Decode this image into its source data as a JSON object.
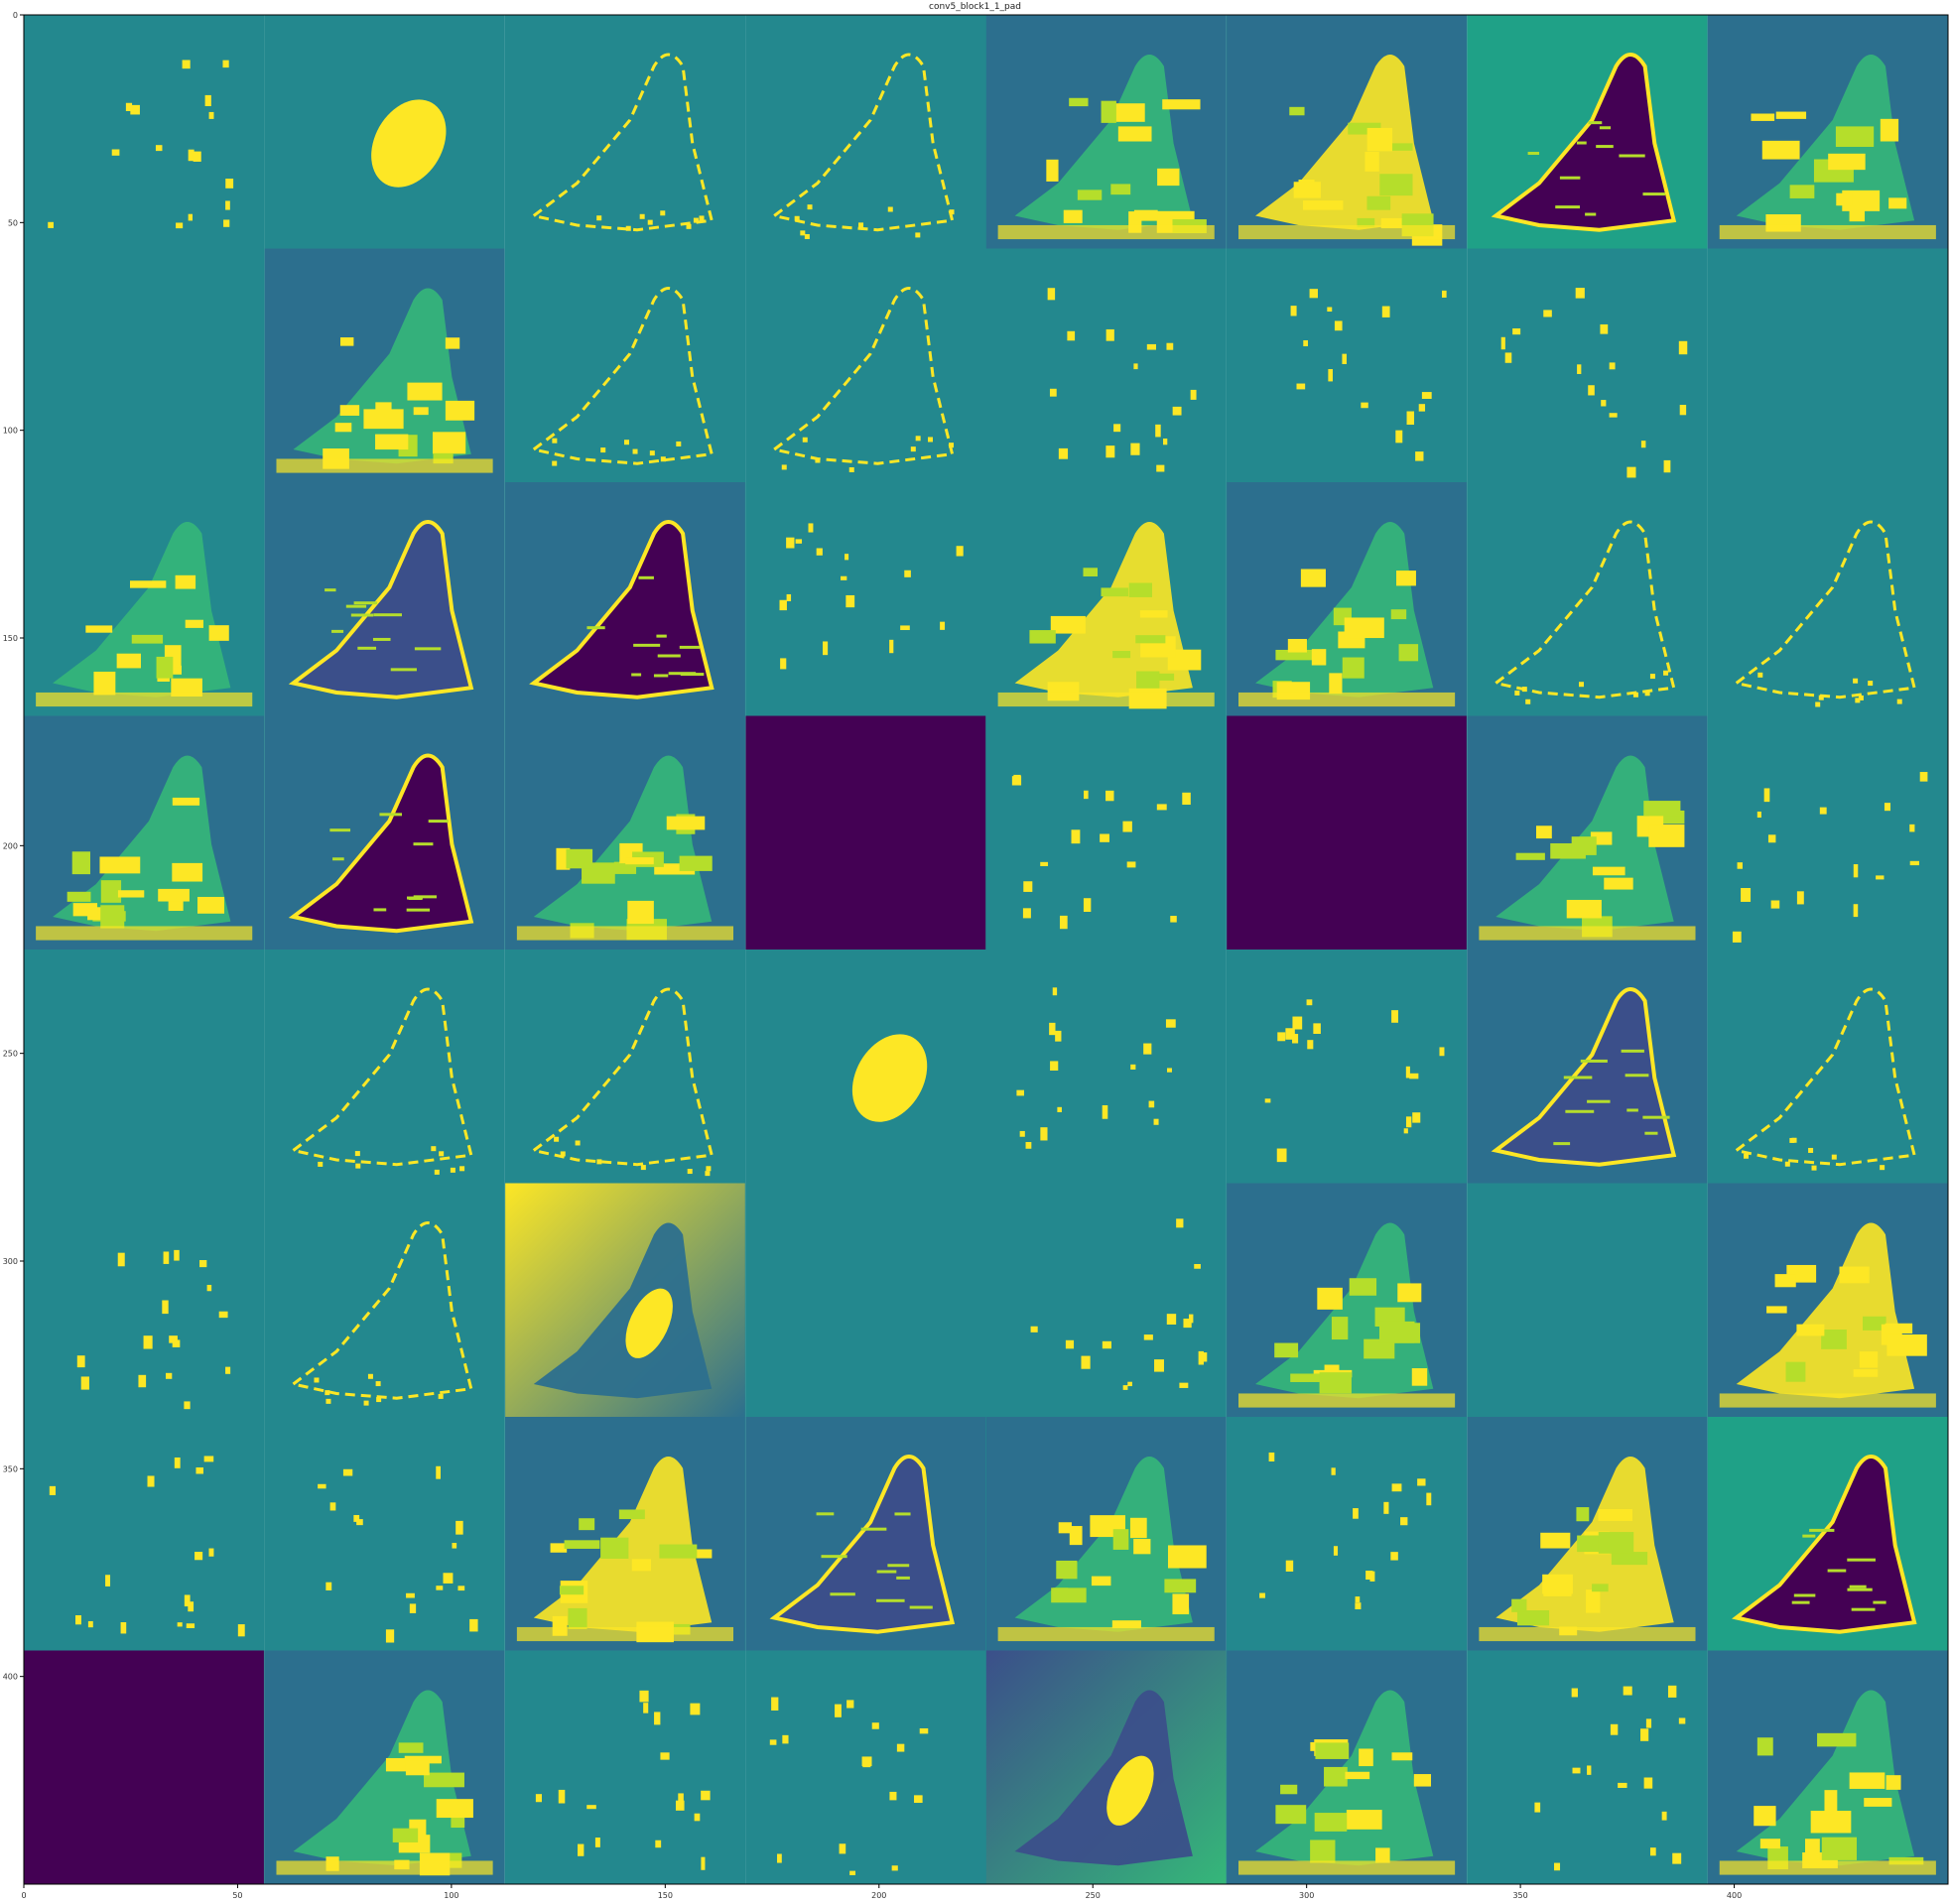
{
  "figure": {
    "title": "conv5_block1_1_pad",
    "colors": {
      "teal": "#23888e",
      "steel": "#2c6f8e",
      "dark": "#440154",
      "deep": "#3b4f8a",
      "yellow": "#fde725",
      "lime": "#b5de2b",
      "green": "#35b779",
      "midgreen": "#1fa187"
    },
    "grid": {
      "rows": 8,
      "cols": 8
    },
    "axes": {
      "x_ticks": [
        "0",
        "50",
        "100",
        "150",
        "200",
        "250",
        "300",
        "350",
        "400"
      ],
      "y_ticks": [
        "0",
        "50",
        "100",
        "150",
        "200",
        "250",
        "300",
        "350",
        "400"
      ],
      "range": [
        0,
        450
      ]
    },
    "tiles": [
      "sparse",
      "blob",
      "outline",
      "outline",
      "bird-bright",
      "bird-yellow",
      "bird-inverted",
      "bird-bright",
      "blank",
      "bird-bright",
      "outline",
      "outline",
      "sparse",
      "sparse",
      "sparse",
      "blank",
      "bird-bright",
      "bird-edges",
      "bird-inverted",
      "sparse",
      "bird-yellow",
      "bird-bright",
      "outline",
      "outline",
      "bird-bright",
      "bird-inverted",
      "bird-bright",
      "dead",
      "sparse",
      "dead",
      "bird-bright",
      "sparse",
      "blank",
      "outline",
      "outline",
      "blob",
      "sparse",
      "sparse",
      "bird-edges",
      "outline",
      "sparse",
      "outline",
      "gradient",
      "blank",
      "sparse",
      "bird-bright",
      "blank",
      "bird-yellow",
      "sparse",
      "sparse",
      "bird-yellow",
      "bird-edges",
      "bird-bright",
      "sparse",
      "bird-yellow",
      "bird-inverted",
      "dead",
      "bird-bright",
      "sparse",
      "sparse",
      "gradient-dark",
      "bird-bright",
      "sparse",
      "bird-bright"
    ],
    "tile_backgrounds": [
      "teal",
      "teal",
      "teal",
      "teal",
      "steel",
      "steel",
      "midgreen",
      "steel",
      "teal",
      "steel",
      "teal",
      "teal",
      "teal",
      "teal",
      "teal",
      "teal",
      "teal",
      "steel",
      "steel",
      "teal",
      "teal",
      "steel",
      "teal",
      "teal",
      "steel",
      "steel",
      "steel",
      "dark",
      "teal",
      "dark",
      "steel",
      "teal",
      "teal",
      "teal",
      "teal",
      "teal",
      "teal",
      "teal",
      "steel",
      "teal",
      "teal",
      "teal",
      "steel",
      "teal",
      "teal",
      "steel",
      "teal",
      "steel",
      "teal",
      "teal",
      "steel",
      "steel",
      "steel",
      "teal",
      "steel",
      "midgreen",
      "dark",
      "steel",
      "teal",
      "teal",
      "deep",
      "steel",
      "teal",
      "steel"
    ]
  }
}
